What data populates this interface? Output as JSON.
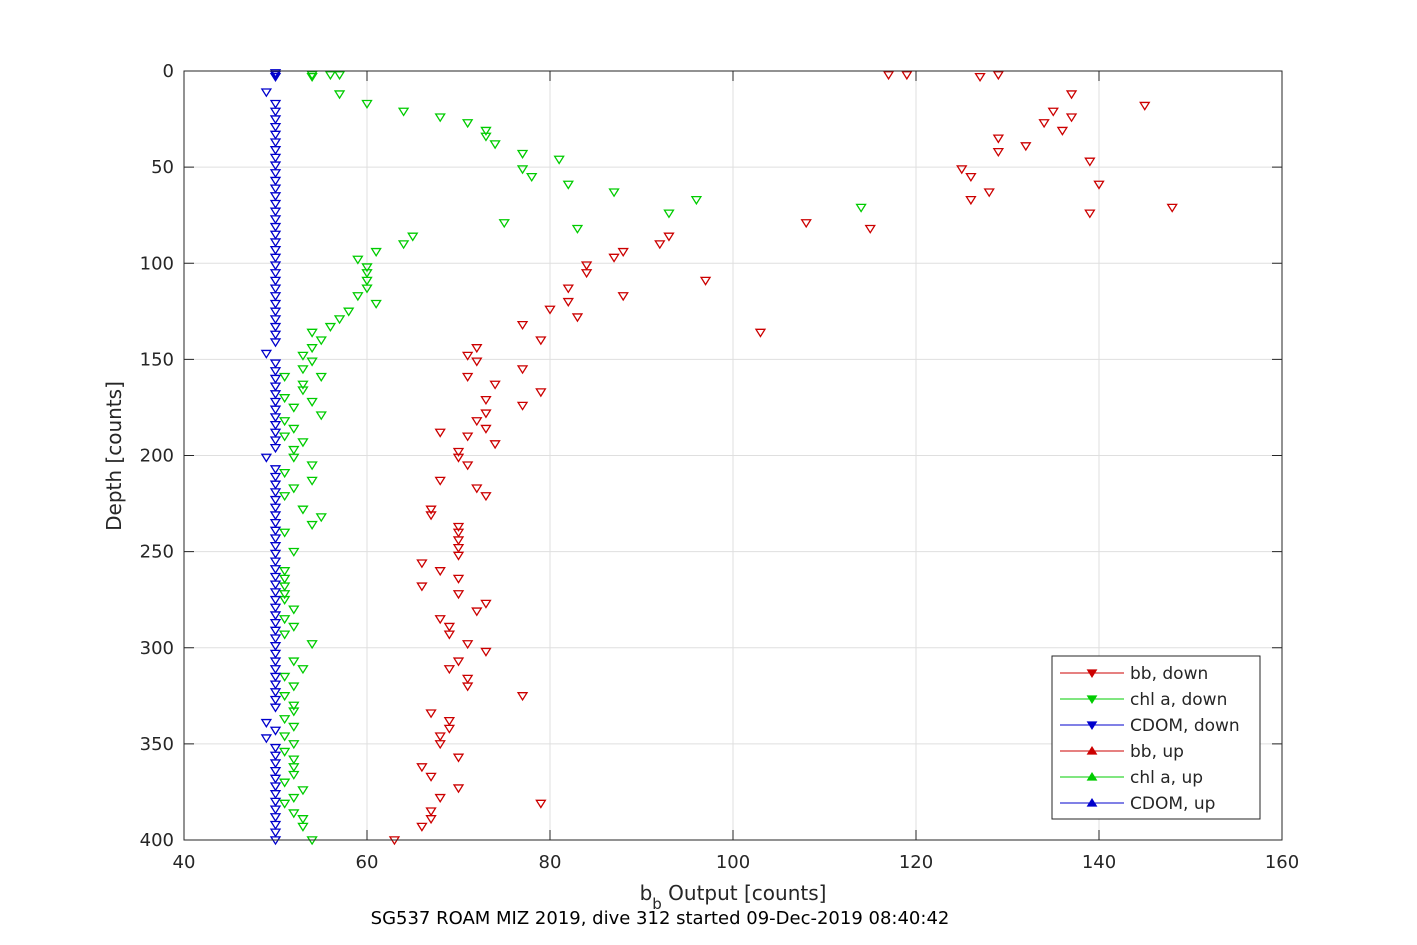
{
  "chart_data": {
    "type": "scatter",
    "xlabel": "b",
    "xlabel_sub": "b",
    "xlabel_rest": " Output [counts]",
    "ylabel": "Depth [counts]",
    "caption": "SG537 ROAM MIZ 2019, dive 312 started 09-Dec-2019 08:40:42",
    "xlim": [
      40,
      160
    ],
    "ylim": [
      0,
      400
    ],
    "y_reversed": true,
    "grid": true,
    "legend_placement": "bottom-right",
    "x_ticks": [
      40,
      60,
      80,
      100,
      120,
      140,
      160
    ],
    "y_ticks": [
      0,
      50,
      100,
      150,
      200,
      250,
      300,
      350,
      400
    ],
    "series": [
      {
        "name": "bb, down",
        "color": "#cc0000",
        "marker": "triangle-down",
        "points": [
          [
            117,
            2
          ],
          [
            119,
            2
          ],
          [
            127,
            3
          ],
          [
            129,
            2
          ],
          [
            137,
            12
          ],
          [
            145,
            18
          ],
          [
            135,
            21
          ],
          [
            137,
            24
          ],
          [
            134,
            27
          ],
          [
            136,
            31
          ],
          [
            129,
            35
          ],
          [
            132,
            39
          ],
          [
            129,
            42
          ],
          [
            139,
            47
          ],
          [
            125,
            51
          ],
          [
            126,
            55
          ],
          [
            140,
            59
          ],
          [
            128,
            63
          ],
          [
            126,
            67
          ],
          [
            148,
            71
          ],
          [
            139,
            74
          ],
          [
            108,
            79
          ],
          [
            115,
            82
          ],
          [
            93,
            86
          ],
          [
            92,
            90
          ],
          [
            88,
            94
          ],
          [
            87,
            97
          ],
          [
            84,
            101
          ],
          [
            84,
            105
          ],
          [
            97,
            109
          ],
          [
            82,
            113
          ],
          [
            88,
            117
          ],
          [
            82,
            120
          ],
          [
            80,
            124
          ],
          [
            83,
            128
          ],
          [
            77,
            132
          ],
          [
            103,
            136
          ],
          [
            79,
            140
          ],
          [
            72,
            144
          ],
          [
            71,
            148
          ],
          [
            72,
            151
          ],
          [
            77,
            155
          ],
          [
            71,
            159
          ],
          [
            74,
            163
          ],
          [
            79,
            167
          ],
          [
            73,
            171
          ],
          [
            77,
            174
          ],
          [
            73,
            178
          ],
          [
            72,
            182
          ],
          [
            73,
            186
          ],
          [
            68,
            188
          ],
          [
            71,
            190
          ],
          [
            74,
            194
          ],
          [
            70,
            198
          ],
          [
            70,
            201
          ],
          [
            71,
            205
          ],
          [
            68,
            213
          ],
          [
            72,
            217
          ],
          [
            73,
            221
          ],
          [
            67,
            228
          ],
          [
            67,
            231
          ],
          [
            70,
            237
          ],
          [
            70,
            240
          ],
          [
            70,
            244
          ],
          [
            70,
            248
          ],
          [
            70,
            252
          ],
          [
            66,
            256
          ],
          [
            68,
            260
          ],
          [
            70,
            264
          ],
          [
            66,
            268
          ],
          [
            70,
            272
          ],
          [
            73,
            277
          ],
          [
            72,
            281
          ],
          [
            68,
            285
          ],
          [
            69,
            289
          ],
          [
            69,
            293
          ],
          [
            71,
            298
          ],
          [
            73,
            302
          ],
          [
            70,
            307
          ],
          [
            69,
            311
          ],
          [
            71,
            316
          ],
          [
            71,
            320
          ],
          [
            77,
            325
          ],
          [
            67,
            334
          ],
          [
            69,
            338
          ],
          [
            69,
            342
          ],
          [
            68,
            346
          ],
          [
            68,
            350
          ],
          [
            70,
            357
          ],
          [
            66,
            362
          ],
          [
            67,
            367
          ],
          [
            70,
            373
          ],
          [
            68,
            378
          ],
          [
            79,
            381
          ],
          [
            67,
            385
          ],
          [
            67,
            389
          ],
          [
            66,
            393
          ],
          [
            63,
            400
          ]
        ]
      },
      {
        "name": "chl a, down",
        "color": "#00cc00",
        "marker": "triangle-down",
        "points": [
          [
            54,
            2
          ],
          [
            56,
            2
          ],
          [
            57,
            2
          ],
          [
            54,
            3
          ],
          [
            57,
            12
          ],
          [
            60,
            17
          ],
          [
            64,
            21
          ],
          [
            68,
            24
          ],
          [
            71,
            27
          ],
          [
            73,
            31
          ],
          [
            73,
            34
          ],
          [
            74,
            38
          ],
          [
            77,
            43
          ],
          [
            81,
            46
          ],
          [
            77,
            51
          ],
          [
            78,
            55
          ],
          [
            82,
            59
          ],
          [
            87,
            63
          ],
          [
            96,
            67
          ],
          [
            114,
            71
          ],
          [
            93,
            74
          ],
          [
            75,
            79
          ],
          [
            83,
            82
          ],
          [
            65,
            86
          ],
          [
            64,
            90
          ],
          [
            61,
            94
          ],
          [
            59,
            98
          ],
          [
            60,
            102
          ],
          [
            60,
            105
          ],
          [
            60,
            109
          ],
          [
            60,
            113
          ],
          [
            59,
            117
          ],
          [
            61,
            121
          ],
          [
            58,
            125
          ],
          [
            57,
            129
          ],
          [
            56,
            133
          ],
          [
            54,
            136
          ],
          [
            55,
            140
          ],
          [
            54,
            144
          ],
          [
            53,
            148
          ],
          [
            54,
            151
          ],
          [
            53,
            155
          ],
          [
            55,
            159
          ],
          [
            51,
            159
          ],
          [
            53,
            163
          ],
          [
            53,
            166
          ],
          [
            51,
            170
          ],
          [
            54,
            172
          ],
          [
            52,
            175
          ],
          [
            55,
            179
          ],
          [
            51,
            182
          ],
          [
            52,
            186
          ],
          [
            51,
            190
          ],
          [
            53,
            193
          ],
          [
            52,
            197
          ],
          [
            52,
            201
          ],
          [
            54,
            205
          ],
          [
            51,
            209
          ],
          [
            54,
            213
          ],
          [
            52,
            217
          ],
          [
            51,
            221
          ],
          [
            53,
            228
          ],
          [
            55,
            232
          ],
          [
            54,
            236
          ],
          [
            51,
            240
          ],
          [
            52,
            250
          ],
          [
            51,
            260
          ],
          [
            51,
            264
          ],
          [
            51,
            268
          ],
          [
            51,
            272
          ],
          [
            51,
            275
          ],
          [
            52,
            280
          ],
          [
            51,
            285
          ],
          [
            52,
            289
          ],
          [
            51,
            293
          ],
          [
            54,
            298
          ],
          [
            52,
            307
          ],
          [
            53,
            311
          ],
          [
            51,
            315
          ],
          [
            52,
            320
          ],
          [
            51,
            325
          ],
          [
            52,
            330
          ],
          [
            52,
            333
          ],
          [
            51,
            337
          ],
          [
            52,
            341
          ],
          [
            51,
            346
          ],
          [
            52,
            350
          ],
          [
            51,
            354
          ],
          [
            52,
            358
          ],
          [
            52,
            362
          ],
          [
            52,
            366
          ],
          [
            51,
            370
          ],
          [
            53,
            374
          ],
          [
            52,
            378
          ],
          [
            51,
            381
          ],
          [
            52,
            386
          ],
          [
            53,
            389
          ],
          [
            53,
            393
          ],
          [
            54,
            400
          ]
        ]
      },
      {
        "name": "CDOM, down",
        "color": "#0000cc",
        "marker": "triangle-down",
        "points": [
          [
            50,
            1
          ],
          [
            50,
            2
          ],
          [
            50,
            3
          ],
          [
            49,
            11
          ],
          [
            50,
            17
          ],
          [
            50,
            21
          ],
          [
            50,
            25
          ],
          [
            50,
            29
          ],
          [
            50,
            33
          ],
          [
            50,
            37
          ],
          [
            50,
            41
          ],
          [
            50,
            45
          ],
          [
            50,
            49
          ],
          [
            50,
            53
          ],
          [
            50,
            57
          ],
          [
            50,
            61
          ],
          [
            50,
            65
          ],
          [
            50,
            69
          ],
          [
            50,
            73
          ],
          [
            50,
            77
          ],
          [
            50,
            81
          ],
          [
            50,
            85
          ],
          [
            50,
            89
          ],
          [
            50,
            93
          ],
          [
            50,
            97
          ],
          [
            50,
            101
          ],
          [
            50,
            105
          ],
          [
            50,
            109
          ],
          [
            50,
            113
          ],
          [
            50,
            117
          ],
          [
            50,
            121
          ],
          [
            50,
            125
          ],
          [
            50,
            129
          ],
          [
            50,
            133
          ],
          [
            50,
            137
          ],
          [
            50,
            141
          ],
          [
            49,
            147
          ],
          [
            50,
            152
          ],
          [
            50,
            156
          ],
          [
            50,
            160
          ],
          [
            50,
            164
          ],
          [
            50,
            168
          ],
          [
            50,
            172
          ],
          [
            50,
            176
          ],
          [
            50,
            180
          ],
          [
            50,
            184
          ],
          [
            50,
            188
          ],
          [
            50,
            192
          ],
          [
            50,
            196
          ],
          [
            49,
            201
          ],
          [
            50,
            207
          ],
          [
            50,
            211
          ],
          [
            50,
            215
          ],
          [
            50,
            219
          ],
          [
            50,
            223
          ],
          [
            50,
            227
          ],
          [
            50,
            231
          ],
          [
            50,
            235
          ],
          [
            50,
            239
          ],
          [
            50,
            243
          ],
          [
            50,
            247
          ],
          [
            50,
            251
          ],
          [
            50,
            255
          ],
          [
            50,
            259
          ],
          [
            50,
            263
          ],
          [
            50,
            267
          ],
          [
            50,
            271
          ],
          [
            50,
            275
          ],
          [
            50,
            279
          ],
          [
            50,
            283
          ],
          [
            50,
            287
          ],
          [
            50,
            291
          ],
          [
            50,
            295
          ],
          [
            50,
            299
          ],
          [
            50,
            303
          ],
          [
            50,
            307
          ],
          [
            50,
            311
          ],
          [
            50,
            315
          ],
          [
            50,
            319
          ],
          [
            50,
            323
          ],
          [
            50,
            327
          ],
          [
            50,
            331
          ],
          [
            49,
            339
          ],
          [
            50,
            343
          ],
          [
            49,
            347
          ],
          [
            50,
            352
          ],
          [
            50,
            356
          ],
          [
            50,
            360
          ],
          [
            50,
            364
          ],
          [
            50,
            368
          ],
          [
            50,
            372
          ],
          [
            50,
            376
          ],
          [
            50,
            380
          ],
          [
            50,
            384
          ],
          [
            50,
            388
          ],
          [
            50,
            392
          ],
          [
            50,
            396
          ],
          [
            50,
            400
          ]
        ]
      },
      {
        "name": "bb, up",
        "color": "#cc0000",
        "marker": "triangle-up",
        "points": []
      },
      {
        "name": "chl a, up",
        "color": "#00cc00",
        "marker": "triangle-up",
        "points": []
      },
      {
        "name": "CDOM, up",
        "color": "#0000cc",
        "marker": "triangle-up",
        "points": []
      }
    ]
  }
}
